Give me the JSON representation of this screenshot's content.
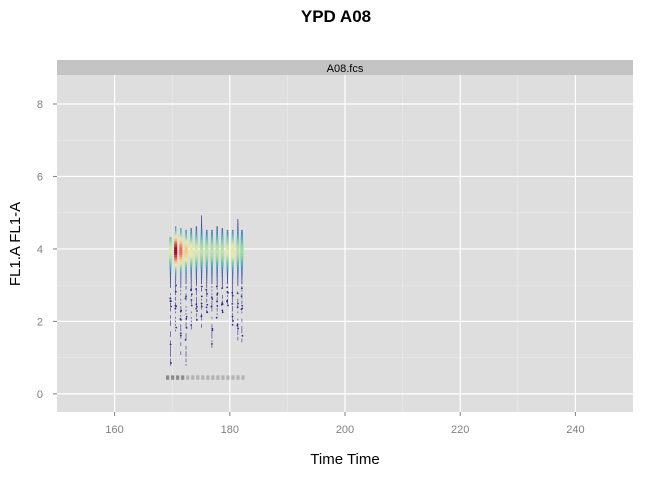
{
  "chart_data": {
    "type": "scatter",
    "title": "YPD A08",
    "panel_label": "A08.fcs",
    "xlabel": "Time Time",
    "ylabel": "FL1.A FL1-A",
    "xlim": [
      150,
      250
    ],
    "ylim": [
      -0.5,
      8.8
    ],
    "x_ticks": [
      160,
      180,
      200,
      220,
      240
    ],
    "x_tick_labels": [
      "160",
      "180",
      "200",
      "220",
      "240"
    ],
    "y_ticks": [
      0,
      2,
      4,
      6,
      8
    ],
    "y_tick_labels": [
      "0",
      "2",
      "4",
      "6",
      "8"
    ],
    "grid": true,
    "density_colormap": [
      "#2c2b8f",
      "#3a62b8",
      "#4aa8c0",
      "#8fd3a4",
      "#e6f0a0",
      "#f6c76a",
      "#e5663c",
      "#a3002a"
    ],
    "columns": [
      {
        "x": 169.7,
        "ymin": 0.8,
        "ymax": 4.3,
        "peak": 0.55
      },
      {
        "x": 170.6,
        "ymin": 1.7,
        "ymax": 4.6,
        "peak": 1.0
      },
      {
        "x": 171.5,
        "ymin": 1.1,
        "ymax": 4.55,
        "peak": 0.85
      },
      {
        "x": 172.4,
        "ymin": 0.8,
        "ymax": 4.5,
        "peak": 0.7
      },
      {
        "x": 173.3,
        "ymin": 1.8,
        "ymax": 4.55,
        "peak": 0.6
      },
      {
        "x": 174.2,
        "ymin": 2.0,
        "ymax": 4.6,
        "peak": 0.55
      },
      {
        "x": 175.1,
        "ymin": 1.8,
        "ymax": 4.9,
        "peak": 0.5
      },
      {
        "x": 176.0,
        "ymin": 2.2,
        "ymax": 4.5,
        "peak": 0.5
      },
      {
        "x": 176.9,
        "ymin": 1.3,
        "ymax": 4.5,
        "peak": 0.5
      },
      {
        "x": 177.8,
        "ymin": 2.0,
        "ymax": 4.6,
        "peak": 0.5
      },
      {
        "x": 178.7,
        "ymin": 2.2,
        "ymax": 4.55,
        "peak": 0.5
      },
      {
        "x": 179.6,
        "ymin": 2.4,
        "ymax": 4.5,
        "peak": 0.55
      },
      {
        "x": 180.5,
        "ymin": 1.8,
        "ymax": 4.5,
        "peak": 0.6
      },
      {
        "x": 181.4,
        "ymin": 1.5,
        "ymax": 4.8,
        "peak": 0.5
      },
      {
        "x": 182.1,
        "ymin": 1.3,
        "ymax": 4.5,
        "peak": 0.45
      }
    ],
    "baseline_points": {
      "y": 0.45,
      "x_start": 169.2,
      "x_end": 182.3,
      "count": 16
    }
  }
}
